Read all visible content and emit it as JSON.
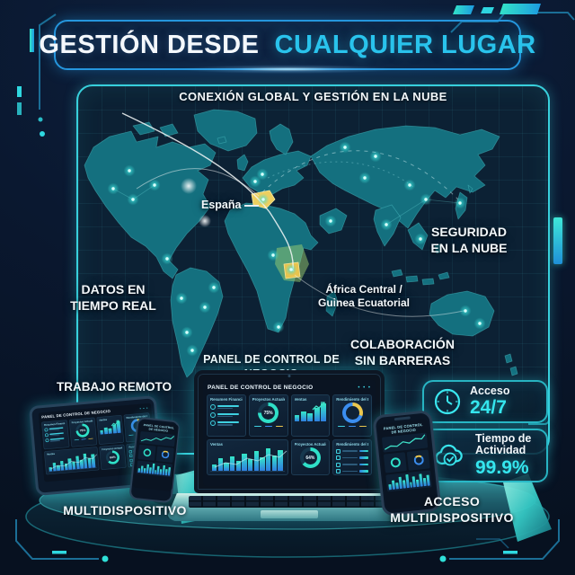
{
  "title": {
    "white_part": "GESTIÓN DESDE",
    "accent_part": "CUALQUIER LUGAR"
  },
  "map_panel": {
    "subtitle": "CONEXIÓN GLOBAL Y GESTIÓN EN LA NUBE",
    "labels": {
      "espana": "España",
      "datos_line1": "DATOS EN",
      "datos_line2": "TIEMPO REAL",
      "seguridad_line1": "SEGURIDAD",
      "seguridad_line2": "EN LA NUBE",
      "africa_line1": "África Central /",
      "africa_line2": "Guinea Ecuatorial",
      "colaboracion_line1": "COLABORACIÓN",
      "colaboracion_line2": "SIN BARRERAS",
      "panel_control": "PANEL DE CONTROL DE NEGOCIO",
      "trabajo_remoto": "TRABAJO REMOTO"
    }
  },
  "dashboard": {
    "title": "PANEL DE CONTROL DE NEGOCIO",
    "menu_dots": "• • •",
    "cards": {
      "resumen_financiero": "Resumen Financiero",
      "proyectos_actuales": "Proyectos Actuales",
      "ventas": "Ventas",
      "rendimiento_equipo": "Rendimiento del Equipo"
    },
    "donut_primary": "75%",
    "donut_secondary": "64%"
  },
  "badges": {
    "acceso": {
      "label": "Acceso",
      "value": "24/7"
    },
    "actividad": {
      "label_line1": "Tiempo de",
      "label_line2": "Actividad",
      "value": "99.9%"
    }
  },
  "footer": {
    "multidispositivo": "MULTIDISPOSITIVO",
    "acceso_line1": "ACCESO",
    "acceso_line2": "MULTIDISPOSITIVO"
  },
  "colors": {
    "accent_cyan": "#2fd8e6",
    "title_cyan": "#29c3ec",
    "highlight_yellow": "#eccf5f",
    "map_land": "#14707f",
    "background_navy": "#0a1830"
  }
}
